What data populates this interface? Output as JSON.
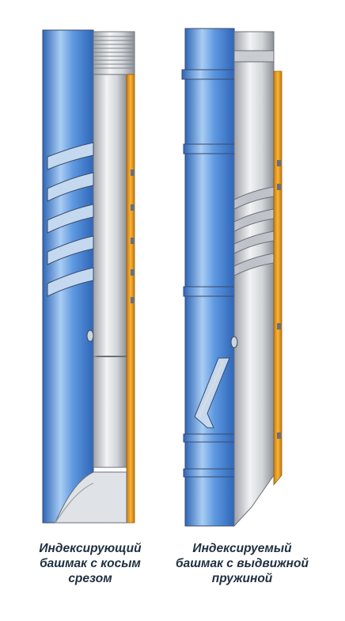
{
  "figure": {
    "tools": [
      {
        "id": "left",
        "caption_lines": [
          "Индексирующий",
          "башмак с косым",
          "срезом"
        ]
      },
      {
        "id": "right",
        "caption_lines": [
          "Индексируемый",
          "башмак с выдвижной",
          "пружиной"
        ]
      }
    ],
    "colors": {
      "blue": "#4f8edc",
      "blue_dark": "#2f66b8",
      "blue_light": "#a9cdf3",
      "steel": "#d9dbde",
      "steel_dark": "#9ea2a8",
      "orange": "#f4a21c",
      "outline": "#3a4a6a"
    }
  }
}
